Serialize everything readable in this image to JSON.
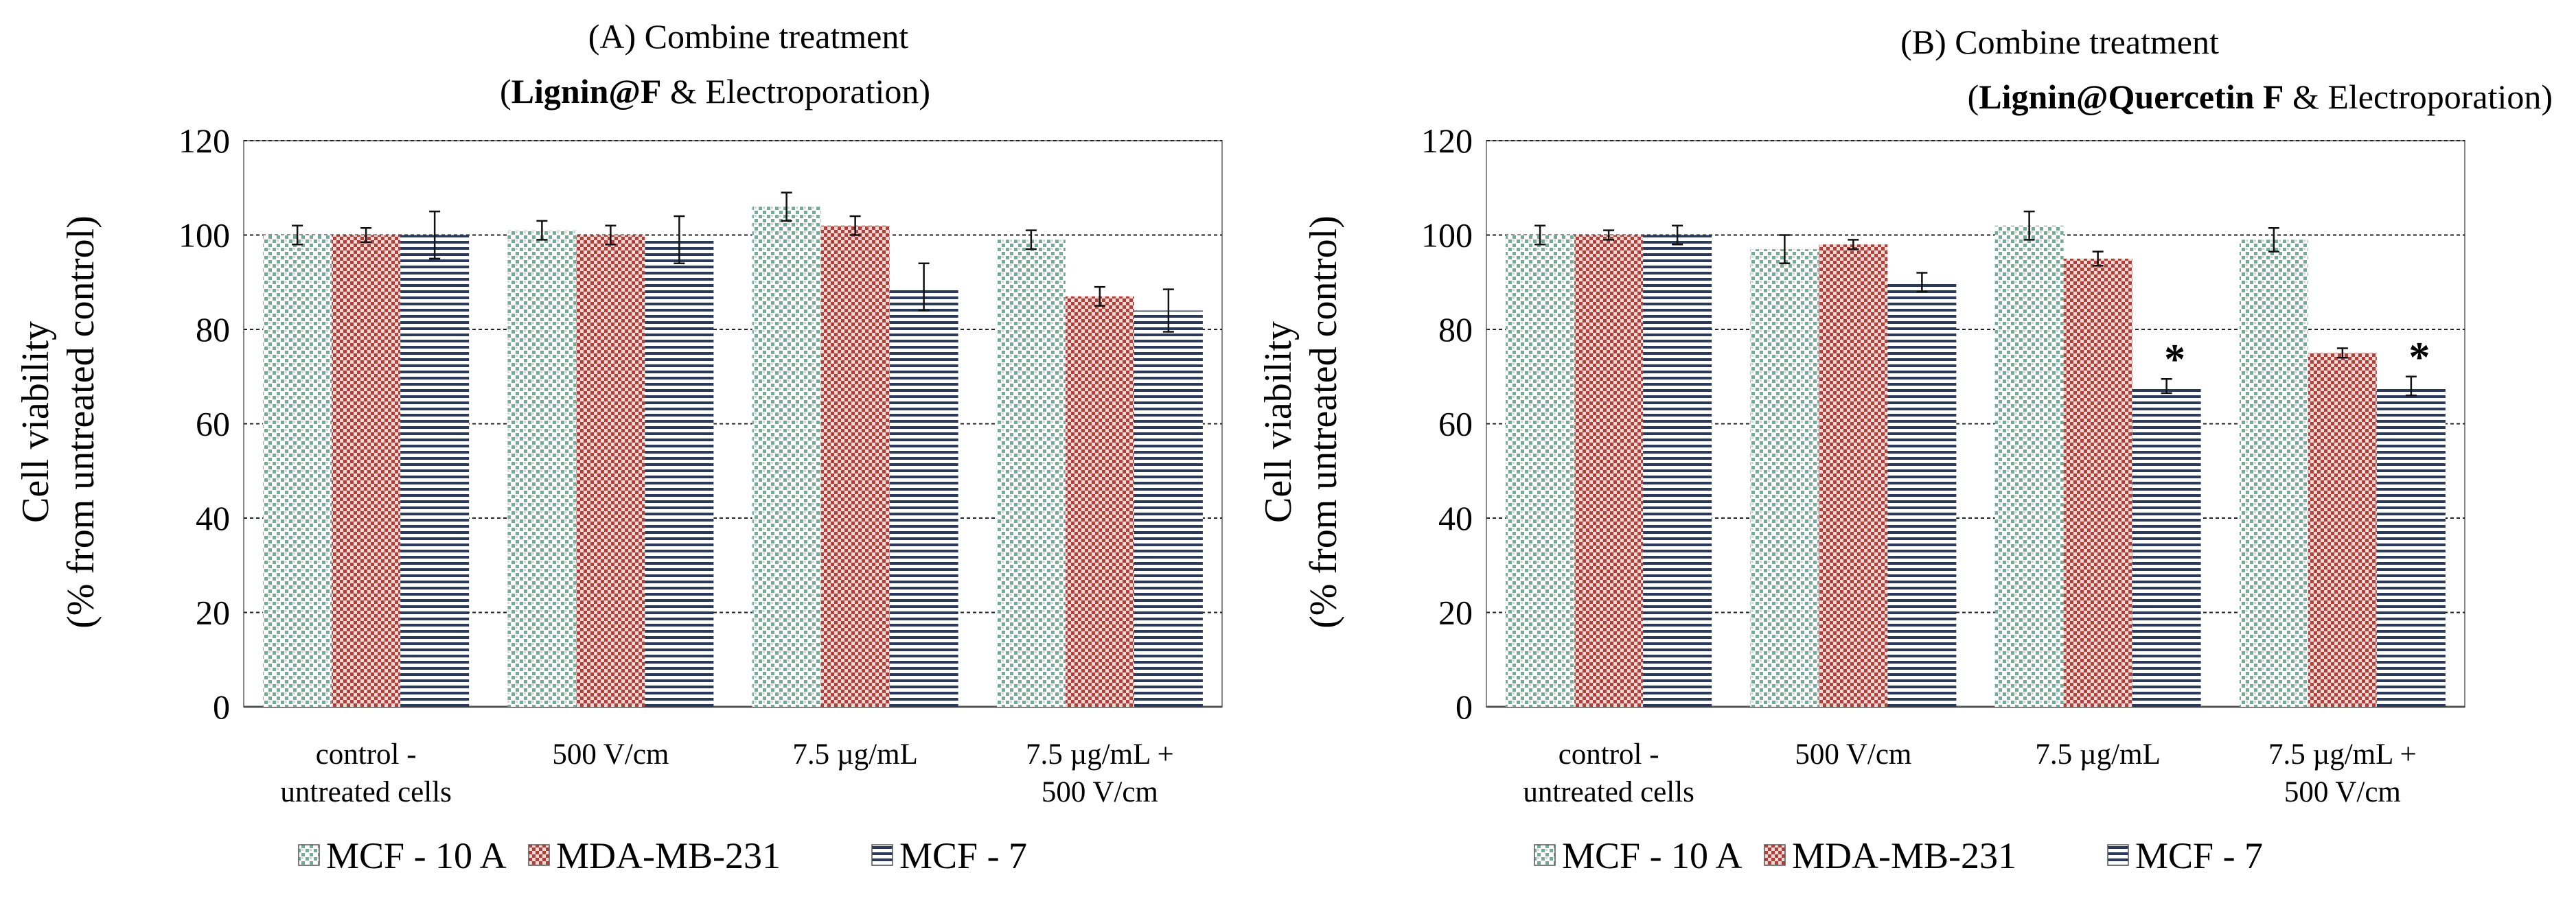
{
  "colors": {
    "mcf10a": "#6fae94",
    "mda": "#b0403a",
    "mcf7": "#2b3a5a",
    "grid": "#222222"
  },
  "icons": {
    "mcf10a": "dotted-square-swatch",
    "mda": "checkered-square-swatch",
    "mcf7": "horizontal-lines-swatch"
  },
  "chart_data": [
    {
      "type": "bar",
      "title_line1": "(A) Combine treatment",
      "title_open": "(",
      "title_bold": "Lignin@F",
      "title_rest": " & Electroporation)",
      "ylabel_line1": "Cell viability",
      "ylabel_line2": "(% from untreated control)",
      "ylim": [
        0,
        120
      ],
      "yticks": [
        "0",
        "20",
        "40",
        "60",
        "80",
        "100",
        "120"
      ],
      "categories": [
        [
          "control -",
          "untreated cells"
        ],
        [
          "500 V/cm"
        ],
        [
          "7.5 µg/mL"
        ],
        [
          "7.5 µg/mL +",
          "500 V/cm"
        ]
      ],
      "series": [
        {
          "name": "MCF - 10 A",
          "key": "mcf10a",
          "values": [
            100,
            101,
            106,
            99
          ],
          "errors": [
            2,
            2,
            3,
            2
          ],
          "stars": [
            false,
            false,
            false,
            false
          ]
        },
        {
          "name": "MDA-MB-231",
          "key": "mda",
          "values": [
            100,
            100,
            102,
            87
          ],
          "errors": [
            1.5,
            2,
            2,
            2
          ],
          "stars": [
            false,
            false,
            false,
            false
          ]
        },
        {
          "name": "MCF - 7",
          "key": "mcf7",
          "values": [
            100,
            99,
            89,
            84
          ],
          "errors": [
            5,
            5,
            5,
            4.5
          ],
          "stars": [
            false,
            false,
            false,
            false
          ]
        }
      ],
      "star_symbol": "*"
    },
    {
      "type": "bar",
      "title_line1": "(B) Combine treatment",
      "title_open": "(",
      "title_bold": "Lignin@Quercetin F",
      "title_rest": " & Electroporation)",
      "ylabel_line1": "Cell viability",
      "ylabel_line2": "(% from untreated control)",
      "ylim": [
        0,
        120
      ],
      "yticks": [
        "0",
        "20",
        "40",
        "60",
        "80",
        "100",
        "120"
      ],
      "categories": [
        [
          "control -",
          "untreated cells"
        ],
        [
          "500 V/cm"
        ],
        [
          "7.5 µg/mL"
        ],
        [
          "7.5 µg/mL +",
          "500 V/cm"
        ]
      ],
      "series": [
        {
          "name": "MCF - 10 A",
          "key": "mcf10a",
          "values": [
            100,
            97,
            102,
            99
          ],
          "errors": [
            2,
            3,
            3,
            2.5
          ],
          "stars": [
            false,
            false,
            false,
            false
          ]
        },
        {
          "name": "MDA-MB-231",
          "key": "mda",
          "values": [
            100,
            98,
            95,
            75
          ],
          "errors": [
            1,
            1,
            1.5,
            1
          ],
          "stars": [
            false,
            false,
            false,
            false
          ]
        },
        {
          "name": "MCF - 7",
          "key": "mcf7",
          "values": [
            100,
            90,
            68,
            68
          ],
          "errors": [
            2,
            2,
            1.5,
            2
          ],
          "stars": [
            false,
            false,
            true,
            true
          ]
        }
      ],
      "star_symbol": "*"
    }
  ]
}
